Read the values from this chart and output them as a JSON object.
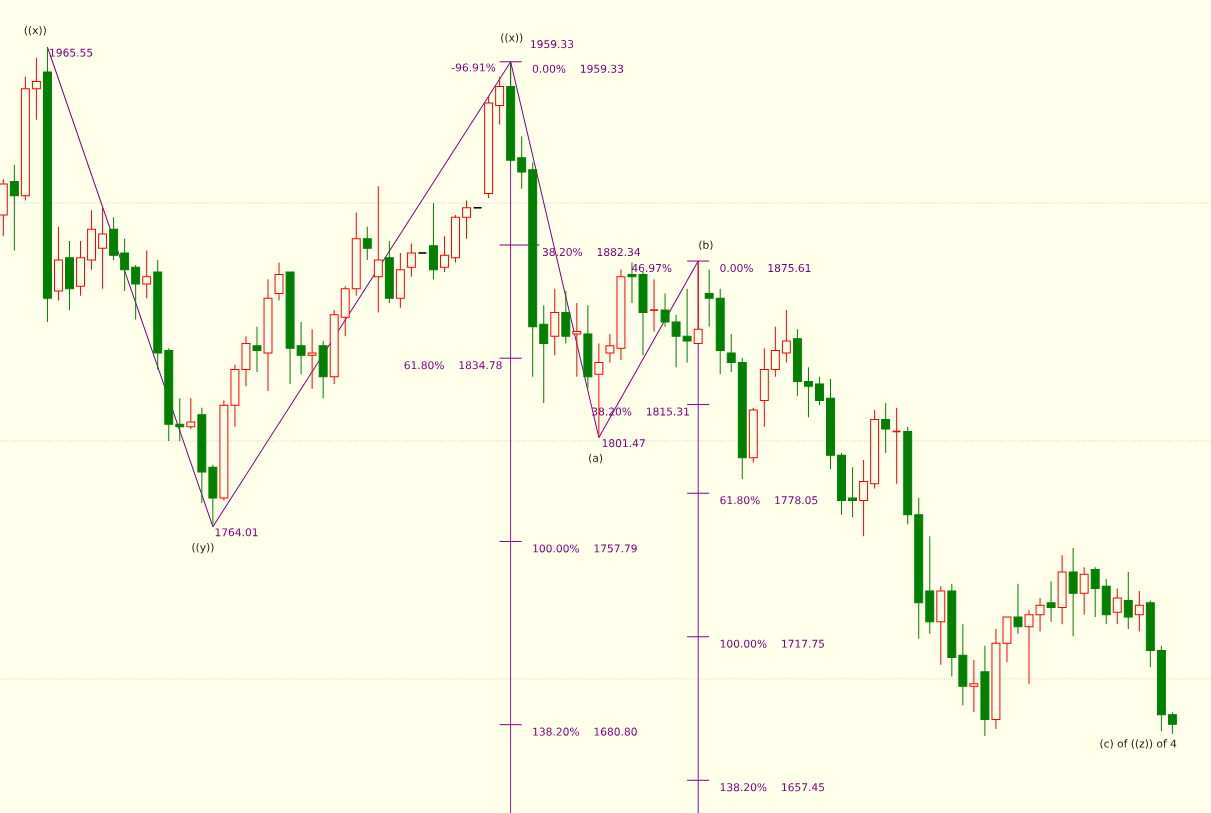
{
  "chart_data": {
    "type": "candlestick",
    "categories": [
      null,
      null,
      null,
      null,
      null,
      null,
      null,
      null,
      null,
      null,
      null,
      null,
      null,
      null,
      null,
      null,
      null,
      null,
      null,
      null,
      null,
      null,
      null,
      null,
      null,
      null,
      null,
      null,
      null,
      null,
      null,
      null,
      null,
      null,
      null,
      null,
      null,
      null,
      null,
      null,
      null,
      null,
      null,
      null,
      null,
      null,
      null,
      null,
      null,
      null,
      null,
      null,
      null,
      null,
      null,
      null,
      null,
      null,
      null,
      null,
      null,
      null,
      null,
      null,
      null,
      null,
      null,
      null,
      null,
      null,
      null,
      null,
      null,
      null,
      null,
      null,
      null,
      null,
      null,
      null,
      null,
      null,
      null,
      null,
      null,
      null,
      null,
      null,
      null,
      null,
      null,
      null,
      null,
      null,
      null,
      null,
      null,
      null,
      null,
      null,
      null,
      null,
      null,
      null,
      null,
      null,
      null
    ],
    "ohlc": [
      [
        1895,
        1910,
        1886,
        1908
      ],
      [
        1909,
        1916,
        1880,
        1903
      ],
      [
        1903,
        1953,
        1901,
        1948
      ],
      [
        1948,
        1961,
        1935,
        1951
      ],
      [
        1955,
        1965.55,
        1850,
        1860
      ],
      [
        1863,
        1890,
        1859,
        1876
      ],
      [
        1877,
        1884,
        1855,
        1864
      ],
      [
        1865,
        1884,
        1861,
        1877
      ],
      [
        1876,
        1897,
        1872,
        1889
      ],
      [
        1881,
        1898,
        1864,
        1887
      ],
      [
        1889,
        1894,
        1876,
        1878
      ],
      [
        1879,
        1885,
        1863,
        1872
      ],
      [
        1873,
        1874,
        1851,
        1866
      ],
      [
        1866,
        1880,
        1860,
        1869
      ],
      [
        1871,
        1876,
        1830,
        1837
      ],
      [
        1838,
        1839,
        1800,
        1807
      ],
      [
        1807,
        1818,
        1800,
        1806
      ],
      [
        1806,
        1818,
        1805,
        1808
      ],
      [
        1811,
        1814,
        1774,
        1787
      ],
      [
        1789,
        1790,
        1764.01,
        1776
      ],
      [
        1776,
        1817,
        1775,
        1815
      ],
      [
        1815,
        1832,
        1806,
        1830
      ],
      [
        1830,
        1844,
        1823,
        1841
      ],
      [
        1840,
        1848,
        1829,
        1838
      ],
      [
        1837,
        1868,
        1821,
        1860
      ],
      [
        1862,
        1875,
        1859,
        1870
      ],
      [
        1871,
        1871,
        1824,
        1839
      ],
      [
        1840,
        1850,
        1828,
        1836
      ],
      [
        1836,
        1847,
        1822,
        1837
      ],
      [
        1840,
        1842,
        1818,
        1827
      ],
      [
        1827,
        1855,
        1824,
        1853
      ],
      [
        1852,
        1865,
        1844,
        1864
      ],
      [
        1864,
        1896,
        1861,
        1885
      ],
      [
        1885,
        1890,
        1876,
        1881
      ],
      [
        1869,
        1907,
        1854,
        1876
      ],
      [
        1877,
        1884,
        1858,
        1860
      ],
      [
        1860,
        1879,
        1856,
        1872
      ],
      [
        1873,
        1883,
        1869,
        1879
      ],
      [
        1879,
        1879,
        1879,
        1879
      ],
      [
        1882,
        1900,
        1868,
        1872
      ],
      [
        1873,
        1886,
        1871,
        1878
      ],
      [
        1877,
        1895,
        1875,
        1894
      ],
      [
        1894,
        1901,
        1885,
        1898
      ],
      [
        1898,
        1898,
        1898,
        1898
      ],
      [
        1904,
        1945,
        1902,
        1942
      ],
      [
        1941,
        1953,
        1933,
        1949
      ],
      [
        1949,
        1959.33,
        1917,
        1918
      ],
      [
        1919,
        1928,
        1906,
        1913
      ],
      [
        1914,
        1917,
        1827,
        1848
      ],
      [
        1849,
        1857,
        1816,
        1841
      ],
      [
        1844,
        1864,
        1836,
        1854
      ],
      [
        1854,
        1863,
        1841,
        1844
      ],
      [
        1845,
        1858,
        1827,
        1846
      ],
      [
        1845,
        1857,
        1822,
        1827
      ],
      [
        1828,
        1841,
        1801.47,
        1833
      ],
      [
        1837,
        1845,
        1833,
        1840
      ],
      [
        1839,
        1872,
        1834,
        1869
      ],
      [
        1870,
        1875,
        1858,
        1869
      ],
      [
        1870,
        1871,
        1836,
        1854
      ],
      [
        1855,
        1868,
        1846,
        1855
      ],
      [
        1855,
        1862,
        1848,
        1850
      ],
      [
        1850,
        1853,
        1831,
        1844
      ],
      [
        1844,
        1864,
        1833,
        1842
      ],
      [
        1841,
        1875.61,
        1841,
        1847
      ],
      [
        1862,
        1872,
        1848,
        1860
      ],
      [
        1860,
        1864,
        1828,
        1838
      ],
      [
        1837,
        1845,
        1829,
        1833
      ],
      [
        1833,
        1835,
        1784,
        1793
      ],
      [
        1793,
        1814,
        1791,
        1813
      ],
      [
        1817,
        1839,
        1806,
        1830
      ],
      [
        1830,
        1848,
        1827,
        1838
      ],
      [
        1837,
        1855,
        1833,
        1842
      ],
      [
        1843,
        1847,
        1819,
        1825
      ],
      [
        1825,
        1831,
        1810,
        1823
      ],
      [
        1824,
        1827,
        1815,
        1817
      ],
      [
        1818,
        1826,
        1788,
        1794
      ],
      [
        1794,
        1795,
        1769,
        1775
      ],
      [
        1776,
        1789,
        1768,
        1775
      ],
      [
        1775,
        1792,
        1760,
        1783
      ],
      [
        1782,
        1813,
        1780,
        1809
      ],
      [
        1809,
        1816,
        1795,
        1805
      ],
      [
        1804,
        1814,
        1782,
        1804
      ],
      [
        1804,
        1806,
        1765,
        1769
      ],
      [
        1769,
        1776,
        1717,
        1732
      ],
      [
        1737,
        1760,
        1719,
        1724
      ],
      [
        1724,
        1739,
        1706,
        1737
      ],
      [
        1737,
        1740,
        1701,
        1709
      ],
      [
        1710,
        1723,
        1689,
        1697
      ],
      [
        1697,
        1708,
        1686,
        1698
      ],
      [
        1703,
        1714,
        1676,
        1683
      ],
      [
        1683,
        1721,
        1679,
        1715
      ],
      [
        1715,
        1726,
        1707,
        1726
      ],
      [
        1726,
        1740,
        1719,
        1722
      ],
      [
        1722,
        1729,
        1698,
        1727
      ],
      [
        1727,
        1734,
        1720,
        1731
      ],
      [
        1732,
        1741,
        1724,
        1730
      ],
      [
        1730,
        1752,
        1723,
        1745
      ],
      [
        1745,
        1755,
        1718,
        1736
      ],
      [
        1736,
        1747,
        1727,
        1744
      ],
      [
        1746,
        1747,
        1726,
        1738
      ],
      [
        1739,
        1742,
        1723,
        1727
      ],
      [
        1728,
        1738,
        1723,
        1734
      ],
      [
        1733,
        1745,
        1721,
        1726
      ],
      [
        1727,
        1737,
        1720,
        1731
      ],
      [
        1732,
        1733,
        1705,
        1712
      ],
      [
        1712,
        1714,
        1678,
        1685
      ],
      [
        1685,
        1686,
        1677,
        1681
      ]
    ],
    "colors": [
      "#ff0000",
      "#008000",
      "#ff0000",
      "#ff0000",
      "#008000",
      "#ff0000",
      "#008000",
      "#ff0000",
      "#ff0000",
      "#ff0000",
      "#008000",
      "#008000",
      "#008000",
      "#ff0000",
      "#008000",
      "#008000",
      "#008000",
      "#ff0000",
      "#008000",
      "#008000",
      "#ff0000",
      "#ff0000",
      "#ff0000",
      "#008000",
      "#ff0000",
      "#ff0000",
      "#008000",
      "#008000",
      "#ff0000",
      "#008000",
      "#ff0000",
      "#ff0000",
      "#ff0000",
      "#008000",
      "#ff0000",
      "#008000",
      "#ff0000",
      "#ff0000",
      "#000000",
      "#008000",
      "#ff0000",
      "#ff0000",
      "#ff0000",
      "#000000",
      "#ff0000",
      "#ff0000",
      "#008000",
      "#008000",
      "#008000",
      "#008000",
      "#ff0000",
      "#008000",
      "#ff0000",
      "#008000",
      "#ff0000",
      "#ff0000",
      "#ff0000",
      "#008000",
      "#008000",
      "#ff0000",
      "#008000",
      "#008000",
      "#008000",
      "#ff0000",
      "#008000",
      "#008000",
      "#008000",
      "#008000",
      "#ff0000",
      "#ff0000",
      "#ff0000",
      "#ff0000",
      "#008000",
      "#008000",
      "#008000",
      "#008000",
      "#008000",
      "#008000",
      "#ff0000",
      "#ff0000",
      "#008000",
      "#ff0000",
      "#008000",
      "#008000",
      "#008000",
      "#ff0000",
      "#008000",
      "#008000",
      "#ff0000",
      "#008000",
      "#ff0000",
      "#ff0000",
      "#008000",
      "#ff0000",
      "#ff0000",
      "#008000",
      "#ff0000",
      "#008000",
      "#ff0000",
      "#008000",
      "#008000",
      "#ff0000",
      "#008000",
      "#ff0000",
      "#008000",
      "#008000",
      "#008000"
    ],
    "series": [
      {
        "type": "line",
        "color": "#800080",
        "values": [
          null,
          null,
          null,
          null,
          1965.55,
          null,
          null,
          null,
          null,
          null,
          null,
          null,
          null,
          null,
          null,
          null,
          null,
          null,
          null,
          1764.01,
          null,
          null,
          null,
          null,
          null,
          null,
          null,
          null,
          null,
          null,
          null,
          null,
          null,
          null,
          null,
          null,
          null,
          null,
          null,
          null,
          null,
          null,
          null,
          null,
          null,
          null,
          1959.33,
          null,
          null,
          null,
          null,
          null,
          null,
          null,
          1801.47,
          null,
          null,
          null,
          null,
          null,
          null,
          null,
          null,
          1875.61,
          null,
          null,
          null,
          null,
          null,
          null,
          null,
          null,
          null,
          null,
          null,
          null,
          null,
          null,
          null,
          null,
          null,
          null,
          null,
          null,
          null,
          null,
          null,
          null,
          null,
          null,
          null,
          null,
          null,
          null,
          null,
          null,
          null,
          null,
          null,
          null,
          null,
          null,
          null,
          null,
          null,
          null,
          null
        ]
      }
    ],
    "ylim": [
      1643.7,
      1985.3
    ],
    "yticks": [
      {
        "value": 1700,
        "label": null
      },
      {
        "value": 1800,
        "label": null
      },
      {
        "value": 1900,
        "label": null
      }
    ],
    "grid": "y",
    "ref_lines": [
      {
        "axis": "y",
        "value": 1959.33,
        "label": "0.00% 1959.33",
        "color": "#800080"
      },
      {
        "axis": "y",
        "value": 1882.34,
        "label": "38.20% 1882.34",
        "color": "#800080"
      },
      {
        "axis": "y",
        "value": 1834.78,
        "label": "61.80% 1834.78",
        "color": "#800080"
      },
      {
        "axis": "y",
        "value": 1757.79,
        "label": "100.00% 1757.79",
        "color": "#800080"
      },
      {
        "axis": "y",
        "value": 1680.8,
        "label": "138.20% 1680.80",
        "color": "#800080"
      },
      {
        "axis": "y",
        "value": 1875.61,
        "label": "0.00% 1875.61",
        "color": "#800080"
      },
      {
        "axis": "y",
        "value": 1815.31,
        "label": "38.20% 1815.31",
        "color": "#800080"
      },
      {
        "axis": "y",
        "value": 1778.05,
        "label": "61.80% 1778.05",
        "color": "#800080"
      },
      {
        "axis": "y",
        "value": 1717.75,
        "label": "100.00% 1717.75",
        "color": "#800080"
      },
      {
        "axis": "y",
        "value": 1657.45,
        "label": "138.20% 1657.45",
        "color": "#800080"
      }
    ],
    "annotations": [
      "((x))",
      "1965.55",
      "((y))",
      "1764.01",
      "((x))",
      "1959.33",
      "-96.91%",
      "(a)",
      "1801.47",
      "46.97%",
      "(b)",
      "(c) of ((z)) of 4"
    ]
  }
}
